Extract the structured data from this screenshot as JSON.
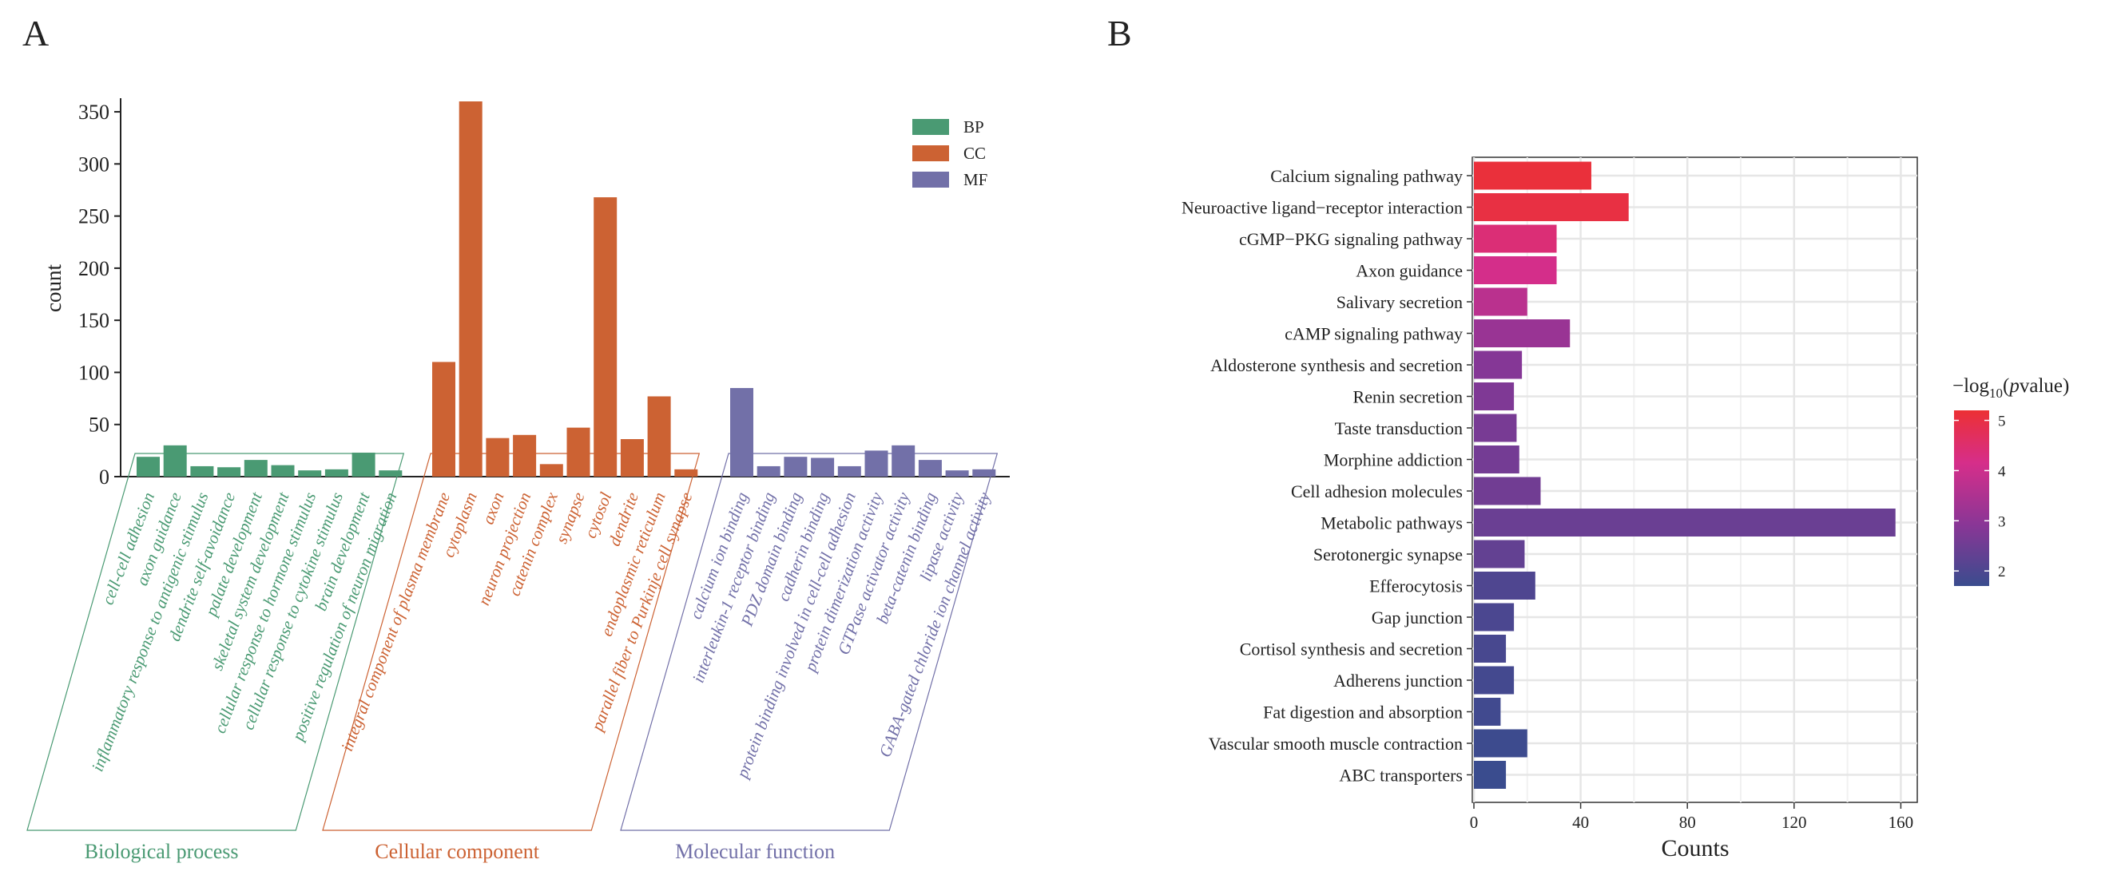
{
  "panels": {
    "a_label": "A",
    "b_label": "B"
  },
  "chart_data": [
    {
      "type": "bar",
      "title": "",
      "xlabel": "",
      "ylabel": "count",
      "ylim": [
        0,
        360
      ],
      "yticks": [
        0,
        50,
        100,
        150,
        200,
        250,
        300,
        350
      ],
      "grid": false,
      "legend": {
        "position": "top-right",
        "entries": [
          "BP",
          "CC",
          "MF"
        ]
      },
      "colors": {
        "BP": "#4a9a73",
        "CC": "#cc6233",
        "MF": "#7270a8"
      },
      "groups": [
        {
          "key": "BP",
          "label": "Biological process",
          "categories": [
            "cell-cell adhesion",
            "axon guidance",
            "inflammatory response to antigenic stimulus",
            "dendrite self-avoidance",
            "palate development",
            "skeletal system development",
            "cellular response to hormone stimulus",
            "cellular response to cytokine stimulus",
            "brain development",
            "positive regulation of neuron migration"
          ],
          "values": [
            19,
            30,
            10,
            9,
            16,
            11,
            6,
            7,
            23,
            6
          ]
        },
        {
          "key": "CC",
          "label": "Cellular component",
          "categories": [
            "integral component of plasma membrane",
            "cytoplasm",
            "axon",
            "neuron projection",
            "catenin complex",
            "synapse",
            "cytosol",
            "dendrite",
            "endoplasmic reticulum",
            "parallel fiber to Purkinje cell synapse"
          ],
          "values": [
            110,
            360,
            37,
            40,
            12,
            47,
            268,
            36,
            77,
            7
          ]
        },
        {
          "key": "MF",
          "label": "Molecular function",
          "categories": [
            "calcium ion binding",
            "interleukin-1 receptor binding",
            "PDZ domain binding",
            "cadherin binding",
            "protein binding involved in cell-cell adhesion",
            "protein dimerization activity",
            "GTPase activator activity",
            "beta-catenin binding",
            "lipase activity",
            "GABA-gated chloride ion channel activity"
          ],
          "values": [
            85,
            10,
            19,
            18,
            10,
            25,
            30,
            16,
            6,
            7
          ]
        }
      ]
    },
    {
      "type": "bar",
      "orientation": "horizontal",
      "title": "",
      "xlabel": "Counts",
      "ylabel": "",
      "xlim": [
        0,
        165
      ],
      "xticks": [
        0,
        40,
        80,
        120,
        160
      ],
      "grid": true,
      "categories": [
        "Calcium signaling pathway",
        "Neuroactive ligand−receptor interaction",
        "cGMP−PKG signaling pathway",
        "Axon guidance",
        "Salivary secretion",
        "cAMP signaling pathway",
        "Aldosterone synthesis and secretion",
        "Renin secretion",
        "Taste transduction",
        "Morphine addiction",
        "Cell adhesion molecules",
        "Metabolic pathways",
        "Serotonergic synapse",
        "Efferocytosis",
        "Gap junction",
        "Cortisol synthesis and secretion",
        "Adherens junction",
        "Fat digestion and absorption",
        "Vascular smooth muscle contraction",
        "ABC transporters"
      ],
      "values": [
        44,
        58,
        31,
        31,
        20,
        36,
        18,
        15,
        16,
        17,
        25,
        158,
        19,
        23,
        15,
        12,
        15,
        10,
        20,
        12
      ],
      "color_values": [
        5.1,
        5.0,
        4.3,
        4.0,
        3.6,
        3.1,
        2.8,
        2.7,
        2.6,
        2.55,
        2.5,
        2.4,
        2.3,
        2.0,
        1.95,
        1.9,
        1.85,
        1.8,
        1.75,
        1.7
      ],
      "colorbar": {
        "title_prefix": "−log",
        "title_sub": "10",
        "title_open": "(",
        "title_p": "p",
        "title_suffix": "value)",
        "ticks": [
          5,
          4,
          3,
          2
        ],
        "range": [
          1.7,
          5.2
        ],
        "colors": [
          "#3a4c8e",
          "#8a3696",
          "#d62e8a",
          "#ec3034"
        ]
      }
    }
  ]
}
